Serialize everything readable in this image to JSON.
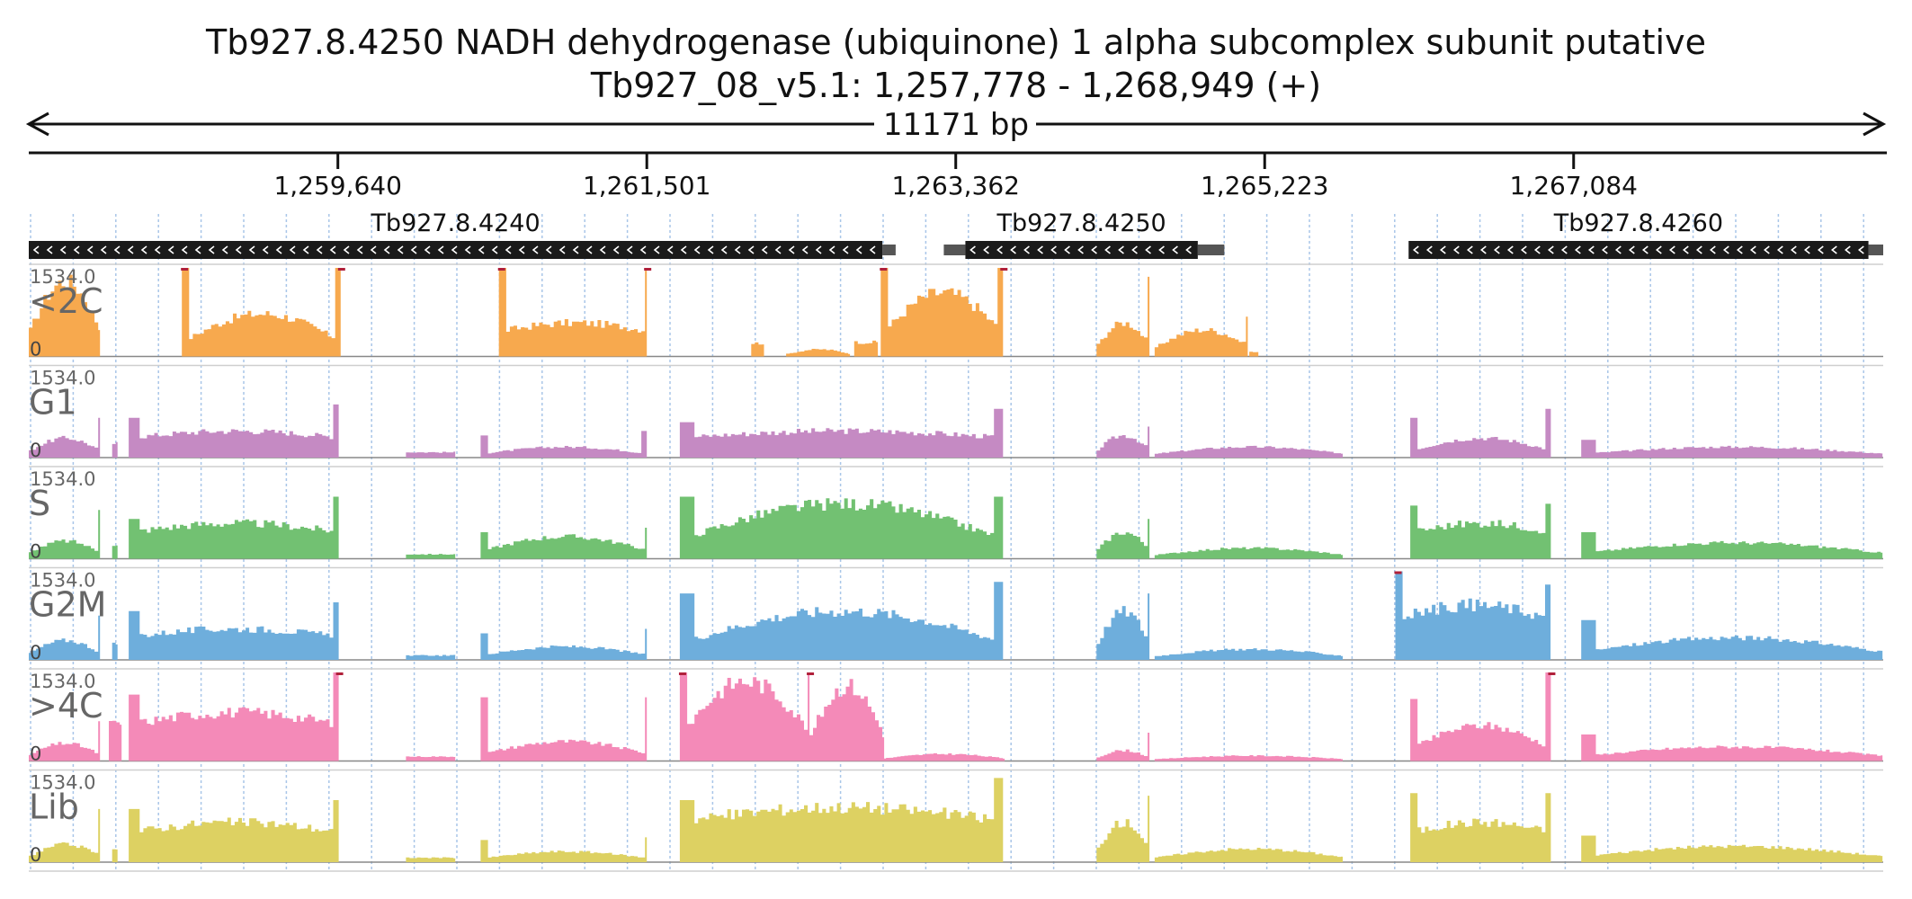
{
  "chart_data": {
    "type": "area",
    "title": "Tb927.8.4250  NADH dehydrogenase (ubiquinone) 1 alpha subcomplex subunit  putative",
    "subtitle": "Tb927_08_v5.1: 1,257,778 - 1,268,949 (+)",
    "span_label": "11171 bp",
    "x_range": [
      1257778,
      1268949
    ],
    "x_ticks": [
      {
        "value": 1259640,
        "label": "1,259,640"
      },
      {
        "value": 1261501,
        "label": "1,261,501"
      },
      {
        "value": 1263362,
        "label": "1,263,362"
      },
      {
        "value": 1265223,
        "label": "1,265,223"
      },
      {
        "value": 1267084,
        "label": "1,267,084"
      }
    ],
    "genes": [
      {
        "name": "Tb927.8.4240",
        "start": 1257778,
        "end": 1262920,
        "utr_end": 1263000,
        "strand": "-"
      },
      {
        "name": "Tb927.8.4250",
        "start": 1263420,
        "end": 1264820,
        "utr_start": 1263290,
        "utr_end": 1264980,
        "strand": "-"
      },
      {
        "name": "Tb927.8.4260",
        "start": 1266090,
        "end": 1268860,
        "utr_end": 1268949,
        "strand": "-"
      }
    ],
    "y_range": [
      0,
      1534.0
    ],
    "y_max_label": "1534.0",
    "y_min_label": "0",
    "bin_width_bp": 22,
    "peak_color": "#b0203a",
    "gridline_color": "#a9c6e8",
    "series": [
      {
        "name": "<2C",
        "color": "#f7a94e",
        "segments": [
          {
            "start": 1257778,
            "end": 1258200,
            "level": 0.85,
            "shape": "hill"
          },
          {
            "start": 1258700,
            "end": 1259650,
            "level": 0.48,
            "shape": "hill",
            "spike_left": 1.0,
            "spike_right": 1.0
          },
          {
            "start": 1260610,
            "end": 1261510,
            "level": 0.38,
            "shape": "plateau",
            "spike_left": 1.0,
            "spike_right": 1.0
          },
          {
            "start": 1262130,
            "end": 1262200,
            "level": 0.15,
            "shape": "flat"
          },
          {
            "start": 1262340,
            "end": 1262720,
            "level": 0.08,
            "shape": "hill"
          },
          {
            "start": 1262750,
            "end": 1262900,
            "level": 0.16,
            "shape": "flat"
          },
          {
            "start": 1262910,
            "end": 1263640,
            "level": 0.72,
            "shape": "hill",
            "spike_left": 1.0,
            "spike_right": 1.0
          },
          {
            "start": 1264210,
            "end": 1264520,
            "level": 0.38,
            "shape": "hill",
            "spike_right": 0.9
          },
          {
            "start": 1264560,
            "end": 1265130,
            "level": 0.3,
            "shape": "hill",
            "spike_right": 0.45
          },
          {
            "start": 1265130,
            "end": 1265180,
            "level": 0.05,
            "shape": "flat"
          }
        ]
      },
      {
        "name": "G1",
        "color": "#c58ac3",
        "segments": [
          {
            "start": 1257778,
            "end": 1258200,
            "level": 0.22,
            "shape": "hill",
            "spike_right": 0.45
          },
          {
            "start": 1258280,
            "end": 1258320,
            "level": 0.16,
            "shape": "flat"
          },
          {
            "start": 1258380,
            "end": 1259650,
            "level": 0.3,
            "shape": "plateau",
            "spike_left": 0.45,
            "spike_right": 0.6
          },
          {
            "start": 1260050,
            "end": 1260350,
            "level": 0.06,
            "shape": "flat"
          },
          {
            "start": 1260500,
            "end": 1261500,
            "level": 0.12,
            "shape": "hill",
            "spike_left": 0.25,
            "spike_right": 0.3
          },
          {
            "start": 1261700,
            "end": 1263650,
            "level": 0.3,
            "shape": "plateau",
            "spike_left": 0.4,
            "spike_right": 0.55
          },
          {
            "start": 1264210,
            "end": 1264520,
            "level": 0.25,
            "shape": "hill",
            "spike_right": 0.35
          },
          {
            "start": 1264560,
            "end": 1265700,
            "level": 0.12,
            "shape": "hill"
          },
          {
            "start": 1266100,
            "end": 1266940,
            "level": 0.22,
            "shape": "hill",
            "spike_left": 0.45,
            "spike_right": 0.55
          },
          {
            "start": 1267130,
            "end": 1268949,
            "level": 0.12,
            "shape": "hill",
            "spike_left": 0.2
          }
        ]
      },
      {
        "name": "S",
        "color": "#72c172",
        "segments": [
          {
            "start": 1257778,
            "end": 1258200,
            "level": 0.2,
            "shape": "hill",
            "spike_right": 0.55
          },
          {
            "start": 1258280,
            "end": 1258320,
            "level": 0.16,
            "shape": "flat"
          },
          {
            "start": 1258380,
            "end": 1259650,
            "level": 0.4,
            "shape": "plateau",
            "spike_left": 0.45,
            "spike_right": 0.7
          },
          {
            "start": 1260050,
            "end": 1260350,
            "level": 0.05,
            "shape": "flat"
          },
          {
            "start": 1260500,
            "end": 1261510,
            "level": 0.25,
            "shape": "hill",
            "spike_left": 0.3,
            "spike_right": 0.35
          },
          {
            "start": 1261700,
            "end": 1263650,
            "level": 0.62,
            "shape": "hill",
            "spike_left": 0.7,
            "spike_right": 0.7
          },
          {
            "start": 1264210,
            "end": 1264520,
            "level": 0.3,
            "shape": "hill",
            "spike_right": 0.45
          },
          {
            "start": 1264560,
            "end": 1265700,
            "level": 0.12,
            "shape": "hill"
          },
          {
            "start": 1266100,
            "end": 1266940,
            "level": 0.4,
            "shape": "plateau",
            "spike_left": 0.6,
            "spike_right": 0.62
          },
          {
            "start": 1267130,
            "end": 1268949,
            "level": 0.18,
            "shape": "hill",
            "spike_left": 0.3
          }
        ]
      },
      {
        "name": "G2M",
        "color": "#6eaedc",
        "segments": [
          {
            "start": 1257778,
            "end": 1258200,
            "level": 0.22,
            "shape": "hill",
            "spike_right": 0.5
          },
          {
            "start": 1258280,
            "end": 1258320,
            "level": 0.18,
            "shape": "flat"
          },
          {
            "start": 1258380,
            "end": 1259650,
            "level": 0.35,
            "shape": "plateau",
            "spike_left": 0.55,
            "spike_right": 0.65
          },
          {
            "start": 1260050,
            "end": 1260350,
            "level": 0.05,
            "shape": "flat"
          },
          {
            "start": 1260500,
            "end": 1261510,
            "level": 0.15,
            "shape": "hill",
            "spike_left": 0.3,
            "spike_right": 0.35
          },
          {
            "start": 1261700,
            "end": 1263650,
            "level": 0.55,
            "shape": "hill",
            "spike_left": 0.75,
            "spike_right": 0.88
          },
          {
            "start": 1264210,
            "end": 1264520,
            "level": 0.55,
            "shape": "hill",
            "spike_right": 0.75
          },
          {
            "start": 1264560,
            "end": 1265700,
            "level": 0.12,
            "shape": "hill"
          },
          {
            "start": 1266010,
            "end": 1266940,
            "level": 0.62,
            "shape": "plateau",
            "spike_left": 1.0,
            "spike_right": 0.85
          },
          {
            "start": 1267130,
            "end": 1268949,
            "level": 0.25,
            "shape": "hill",
            "spike_left": 0.45
          }
        ]
      },
      {
        "name": ">4C",
        "color": "#f48ab8",
        "segments": [
          {
            "start": 1257778,
            "end": 1258200,
            "level": 0.2,
            "shape": "hill",
            "spike_right": 0.45
          },
          {
            "start": 1258260,
            "end": 1258340,
            "level": 0.42,
            "shape": "flat"
          },
          {
            "start": 1258380,
            "end": 1259650,
            "level": 0.55,
            "shape": "plateau",
            "spike_left": 0.75,
            "spike_right": 1.0
          },
          {
            "start": 1260050,
            "end": 1260350,
            "level": 0.05,
            "shape": "flat"
          },
          {
            "start": 1260500,
            "end": 1261510,
            "level": 0.22,
            "shape": "hill",
            "spike_left": 0.72,
            "spike_right": 0.72
          },
          {
            "start": 1261700,
            "end": 1262480,
            "level": 0.9,
            "shape": "hill",
            "spike_left": 1.0,
            "spike_right": 1.0
          },
          {
            "start": 1262480,
            "end": 1262920,
            "level": 0.85,
            "shape": "hill"
          },
          {
            "start": 1262920,
            "end": 1263650,
            "level": 0.08,
            "shape": "hill"
          },
          {
            "start": 1264210,
            "end": 1264520,
            "level": 0.12,
            "shape": "hill",
            "spike_right": 0.32
          },
          {
            "start": 1264560,
            "end": 1265700,
            "level": 0.06,
            "shape": "hill"
          },
          {
            "start": 1266100,
            "end": 1266940,
            "level": 0.4,
            "shape": "hill",
            "spike_left": 0.7,
            "spike_right": 1.0
          },
          {
            "start": 1267130,
            "end": 1268949,
            "level": 0.16,
            "shape": "hill",
            "spike_left": 0.3
          }
        ]
      },
      {
        "name": "Lib",
        "color": "#ddd162",
        "segments": [
          {
            "start": 1257778,
            "end": 1258200,
            "level": 0.2,
            "shape": "hill",
            "spike_right": 0.6
          },
          {
            "start": 1258280,
            "end": 1258320,
            "level": 0.16,
            "shape": "flat"
          },
          {
            "start": 1258380,
            "end": 1259650,
            "level": 0.45,
            "shape": "plateau",
            "spike_left": 0.6,
            "spike_right": 0.7
          },
          {
            "start": 1260050,
            "end": 1260350,
            "level": 0.05,
            "shape": "flat"
          },
          {
            "start": 1260500,
            "end": 1261510,
            "level": 0.12,
            "shape": "hill",
            "spike_left": 0.25,
            "spike_right": 0.28
          },
          {
            "start": 1261700,
            "end": 1263650,
            "level": 0.62,
            "shape": "plateau",
            "spike_left": 0.7,
            "spike_right": 0.95
          },
          {
            "start": 1264210,
            "end": 1264520,
            "level": 0.45,
            "shape": "hill",
            "spike_right": 0.75
          },
          {
            "start": 1264560,
            "end": 1265700,
            "level": 0.15,
            "shape": "hill"
          },
          {
            "start": 1266100,
            "end": 1266940,
            "level": 0.45,
            "shape": "plateau",
            "spike_left": 0.78,
            "spike_right": 0.78
          },
          {
            "start": 1267130,
            "end": 1268949,
            "level": 0.18,
            "shape": "hill",
            "spike_left": 0.3
          }
        ]
      }
    ]
  }
}
